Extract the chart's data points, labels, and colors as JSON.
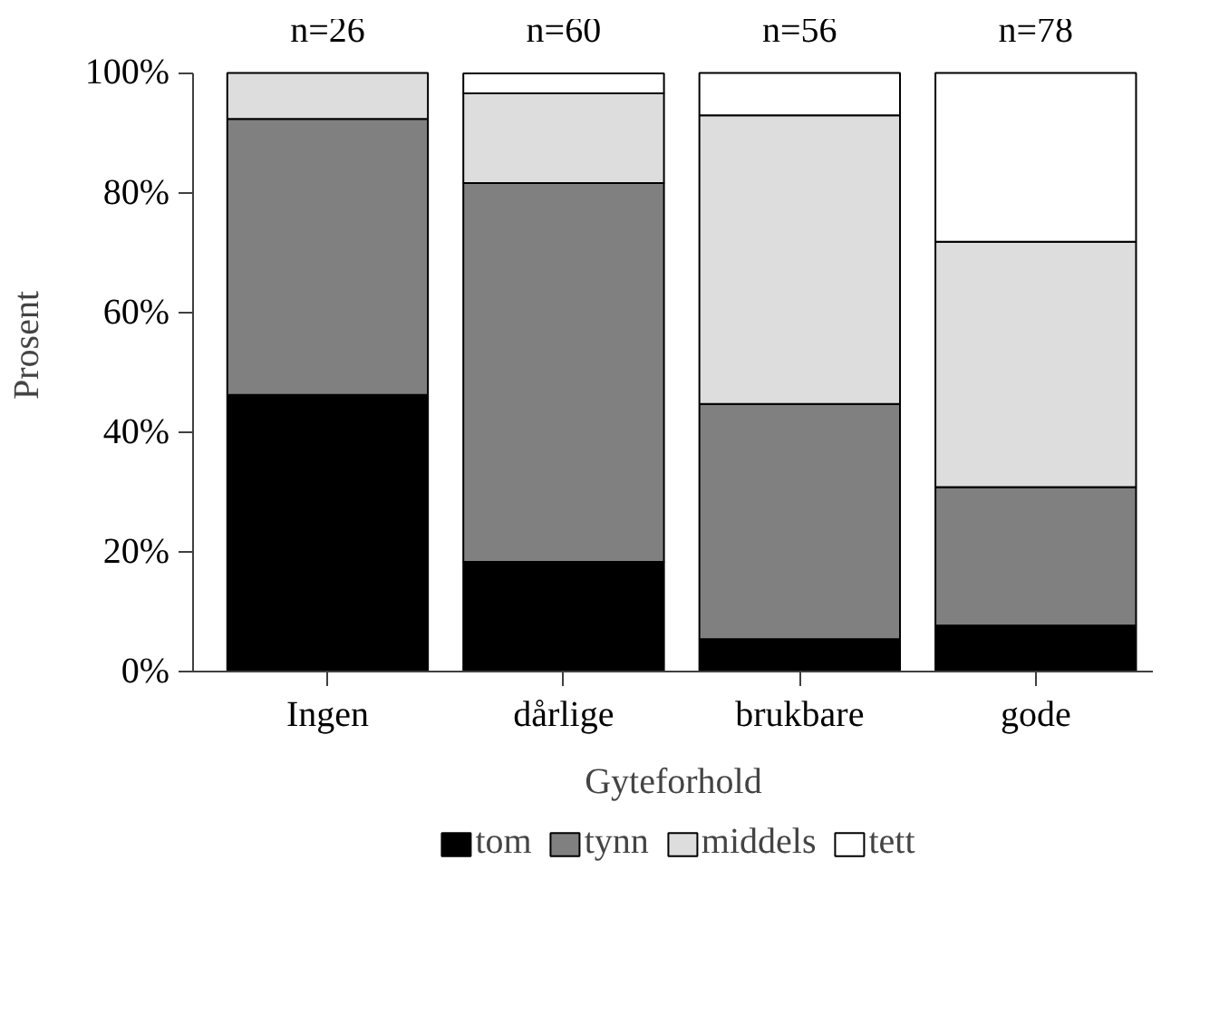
{
  "chart_data": {
    "type": "bar",
    "stacked": true,
    "categories": [
      "Ingen",
      "dårlige",
      "brukbare",
      "gode"
    ],
    "xlabel": "Gyteforhold",
    "ylabel": "Prosent",
    "ylim": [
      0,
      100
    ],
    "yticks": [
      {
        "value": 0,
        "label": "0%"
      },
      {
        "value": 20,
        "label": "20%"
      },
      {
        "value": 40,
        "label": "40%"
      },
      {
        "value": 60,
        "label": "60%"
      },
      {
        "value": 80,
        "label": "80%"
      },
      {
        "value": 100,
        "label": "100%"
      }
    ],
    "series": [
      {
        "name": "tom",
        "color": "#000000",
        "values": [
          46.2,
          18.3,
          5.4,
          7.7
        ]
      },
      {
        "name": "tynn",
        "color": "#808080",
        "values": [
          46.1,
          63.3,
          39.3,
          23.1
        ]
      },
      {
        "name": "middels",
        "color": "#dddddd",
        "values": [
          7.7,
          15.0,
          48.2,
          41.0
        ]
      },
      {
        "name": "tett",
        "color": "#ffffff",
        "values": [
          0.0,
          3.3,
          7.1,
          28.2
        ]
      }
    ],
    "annotations": [
      "n=26",
      "n=60",
      "n=56",
      "n=78"
    ],
    "grid": false,
    "legend": "bottom"
  }
}
